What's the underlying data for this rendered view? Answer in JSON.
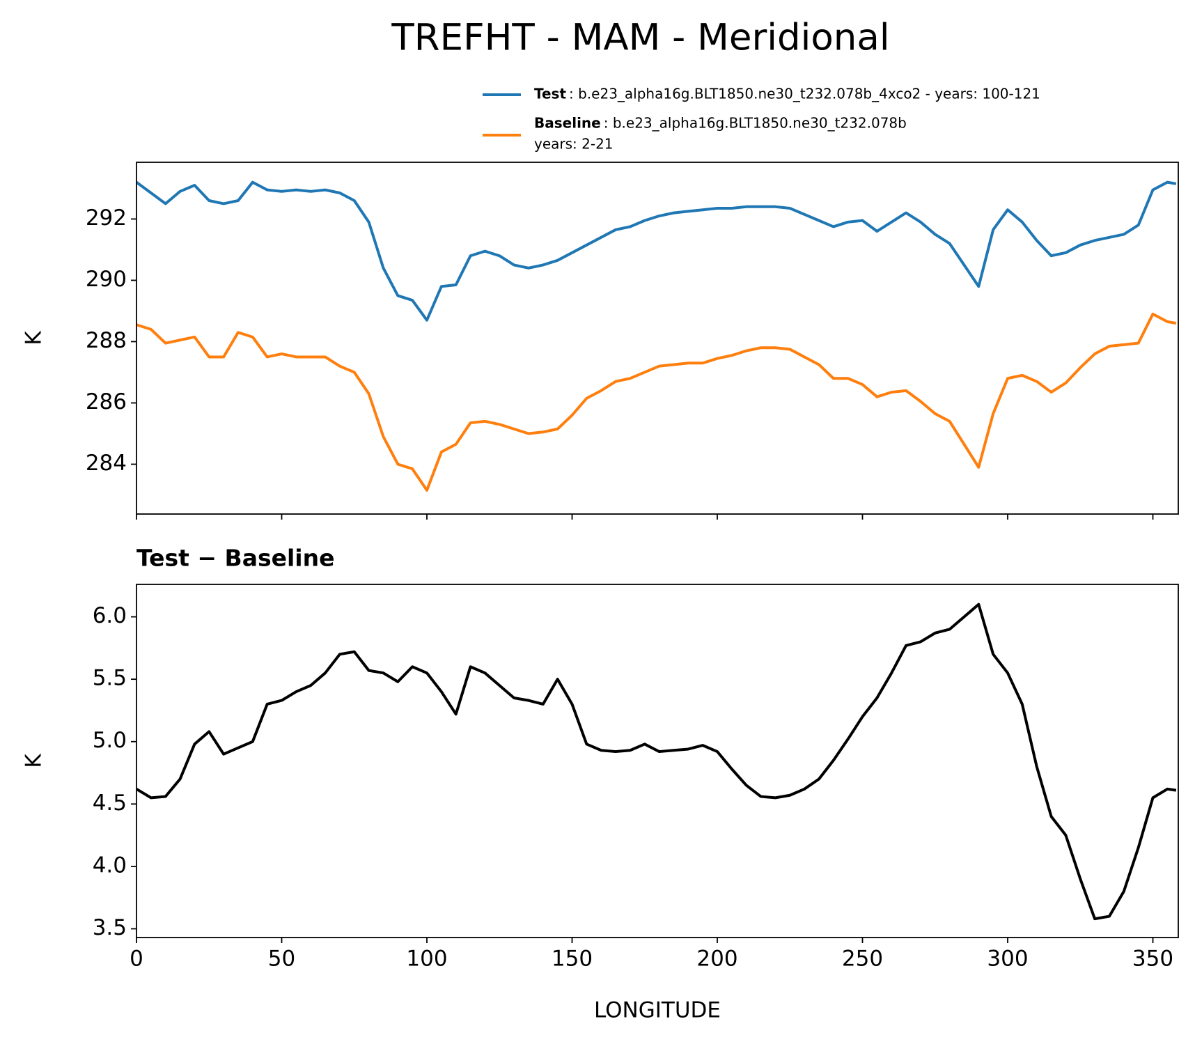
{
  "chart_data": [
    {
      "type": "line",
      "title": "TREFHT - MAM - Meridional",
      "ylabel": "K",
      "x": [
        0,
        5,
        10,
        15,
        20,
        25,
        30,
        35,
        40,
        45,
        50,
        55,
        60,
        65,
        70,
        75,
        80,
        85,
        90,
        95,
        100,
        105,
        110,
        115,
        120,
        125,
        130,
        135,
        140,
        145,
        150,
        155,
        160,
        165,
        170,
        175,
        180,
        185,
        190,
        195,
        200,
        205,
        210,
        215,
        220,
        225,
        230,
        235,
        240,
        245,
        250,
        255,
        260,
        265,
        270,
        275,
        280,
        285,
        290,
        295,
        300,
        305,
        310,
        315,
        320,
        325,
        330,
        335,
        340,
        345,
        350,
        355,
        358
      ],
      "xlim": [
        0,
        358.75
      ],
      "xticks": [
        0,
        50,
        100,
        150,
        200,
        250,
        300,
        350
      ],
      "xtick_labels": false,
      "ylim": [
        282.375,
        293.85
      ],
      "yticks": [
        284,
        286,
        288,
        290,
        292
      ],
      "series": [
        {
          "name": "Test",
          "description": [
            ": b.e23_alpha16g.BLT1850.ne30_t232.078b_4xco2 - years: 100-121"
          ],
          "color": "#1f77b4",
          "values": [
            293.2,
            292.85,
            292.5,
            292.9,
            293.1,
            292.6,
            292.5,
            292.6,
            293.2,
            292.95,
            292.9,
            292.95,
            292.9,
            292.95,
            292.85,
            292.6,
            291.9,
            290.4,
            289.5,
            289.35,
            288.7,
            289.8,
            289.85,
            290.8,
            290.95,
            290.8,
            290.5,
            290.4,
            290.5,
            290.65,
            290.9,
            291.15,
            291.4,
            291.65,
            291.75,
            291.95,
            292.1,
            292.2,
            292.25,
            292.3,
            292.35,
            292.35,
            292.4,
            292.4,
            292.4,
            292.35,
            292.15,
            291.95,
            291.75,
            291.9,
            291.95,
            291.6,
            291.9,
            292.2,
            291.9,
            291.5,
            291.2,
            290.5,
            289.8,
            291.65,
            292.3,
            291.9,
            291.3,
            290.8,
            290.9,
            291.15,
            291.3,
            291.4,
            291.5,
            291.8,
            292.95,
            293.2,
            293.15
          ]
        },
        {
          "name": "Baseline",
          "description": [
            ": b.e23_alpha16g.BLT1850.ne30_t232.078b",
            "years: 2-21"
          ],
          "color": "#ff7f0e",
          "values": [
            288.55,
            288.4,
            287.95,
            288.05,
            288.15,
            287.5,
            287.5,
            288.3,
            288.15,
            287.5,
            287.6,
            287.5,
            287.5,
            287.5,
            287.2,
            287.0,
            286.3,
            284.9,
            284.0,
            283.85,
            283.15,
            284.4,
            284.65,
            285.35,
            285.4,
            285.3,
            285.15,
            285.0,
            285.05,
            285.15,
            285.6,
            286.15,
            286.4,
            286.7,
            286.8,
            287.0,
            287.2,
            287.25,
            287.3,
            287.3,
            287.45,
            287.55,
            287.7,
            287.8,
            287.8,
            287.75,
            287.5,
            287.25,
            286.8,
            286.8,
            286.6,
            286.2,
            286.35,
            286.4,
            286.05,
            285.65,
            285.4,
            284.65,
            283.9,
            285.65,
            286.8,
            286.9,
            286.7,
            286.35,
            286.65,
            287.15,
            287.6,
            287.85,
            287.9,
            287.95,
            288.9,
            288.65,
            288.6
          ]
        }
      ]
    },
    {
      "type": "line",
      "title": "Test − Baseline",
      "ylabel": "K",
      "xlabel": "LONGITUDE",
      "x": [
        0,
        5,
        10,
        15,
        20,
        25,
        30,
        35,
        40,
        45,
        50,
        55,
        60,
        65,
        70,
        75,
        80,
        85,
        90,
        95,
        100,
        105,
        110,
        115,
        120,
        125,
        130,
        135,
        140,
        145,
        150,
        155,
        160,
        165,
        170,
        175,
        180,
        185,
        190,
        195,
        200,
        205,
        210,
        215,
        220,
        225,
        230,
        235,
        240,
        245,
        250,
        255,
        260,
        265,
        270,
        275,
        280,
        285,
        290,
        295,
        300,
        305,
        310,
        315,
        320,
        325,
        330,
        335,
        340,
        345,
        350,
        355,
        358
      ],
      "xlim": [
        0,
        358.75
      ],
      "xticks": [
        0,
        50,
        100,
        150,
        200,
        250,
        300,
        350
      ],
      "ylim": [
        3.43,
        6.26
      ],
      "yticks": [
        {
          "value": 3.5,
          "label": "3.5"
        },
        {
          "value": 4,
          "label": "4.0"
        },
        {
          "value": 4.5,
          "label": "4.5"
        },
        {
          "value": 5,
          "label": "5.0"
        },
        {
          "value": 5.5,
          "label": "5.5"
        },
        {
          "value": 6,
          "label": "6.0"
        }
      ],
      "series": [
        {
          "color": "#000000",
          "values": [
            4.62,
            4.55,
            4.56,
            4.7,
            4.98,
            5.08,
            4.9,
            4.95,
            5.0,
            5.3,
            5.33,
            5.4,
            5.45,
            5.55,
            5.7,
            5.72,
            5.57,
            5.55,
            5.48,
            5.6,
            5.55,
            5.4,
            5.22,
            5.6,
            5.55,
            5.45,
            5.35,
            5.33,
            5.3,
            5.5,
            5.3,
            4.98,
            4.93,
            4.92,
            4.93,
            4.98,
            4.92,
            4.93,
            4.94,
            4.97,
            4.92,
            4.78,
            4.65,
            4.56,
            4.55,
            4.57,
            4.62,
            4.7,
            4.85,
            5.02,
            5.2,
            5.35,
            5.55,
            5.77,
            5.8,
            5.87,
            5.9,
            6.0,
            6.1,
            5.7,
            5.55,
            5.3,
            4.8,
            4.4,
            4.25,
            3.9,
            3.58,
            3.6,
            3.8,
            4.15,
            4.55,
            4.62,
            4.61
          ]
        }
      ]
    }
  ]
}
